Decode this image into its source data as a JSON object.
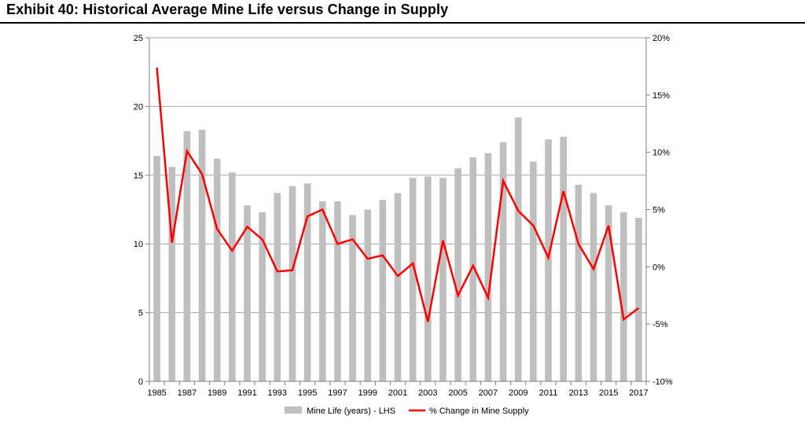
{
  "header": {
    "title": "Exhibit 40: Historical Average Mine Life versus Change in Supply"
  },
  "colors": {
    "bars": "#bfbfbf",
    "line": "#ff0000",
    "grid": "#a6a6a6"
  },
  "chart_data": {
    "type": "bar",
    "title": "",
    "xlabel": "",
    "ylabel": "",
    "categories": [
      "1985",
      "1986",
      "1987",
      "1988",
      "1989",
      "1990",
      "1991",
      "1992",
      "1993",
      "1994",
      "1995",
      "1996",
      "1997",
      "1998",
      "1999",
      "2000",
      "2001",
      "2002",
      "2003",
      "2004",
      "2005",
      "2006",
      "2007",
      "2008",
      "2009",
      "2010",
      "2011",
      "2012",
      "2013",
      "2014",
      "2015",
      "2016",
      "2017"
    ],
    "x_tick_labels": [
      "1985",
      "1987",
      "1989",
      "1991",
      "1993",
      "1995",
      "1997",
      "1999",
      "2001",
      "2003",
      "2005",
      "2007",
      "2009",
      "2011",
      "2013",
      "2015",
      "2017"
    ],
    "ylim": [
      0,
      25
    ],
    "y_ticks": [
      "0",
      "5",
      "10",
      "15",
      "20",
      "25"
    ],
    "y2lim": [
      -10,
      20
    ],
    "y2_ticks": [
      "-10%",
      "-5%",
      "0%",
      "5%",
      "10%",
      "15%",
      "20%"
    ],
    "grid": true,
    "legend_position": "bottom",
    "series": [
      {
        "name": "Mine Life (years) - LHS",
        "type": "bar",
        "axis": "left",
        "values": [
          16.4,
          15.6,
          18.2,
          18.3,
          16.2,
          15.2,
          12.8,
          12.3,
          13.7,
          14.2,
          14.4,
          13.1,
          13.1,
          12.1,
          12.5,
          13.2,
          13.7,
          14.8,
          14.9,
          14.8,
          15.5,
          16.3,
          16.6,
          17.4,
          19.2,
          16.0,
          17.6,
          17.8,
          14.3,
          13.7,
          12.8,
          12.3,
          11.9
        ]
      },
      {
        "name": "% Change in Mine Supply",
        "type": "line",
        "axis": "right",
        "values": [
          17.4,
          2.1,
          10.1,
          8.1,
          3.3,
          1.4,
          3.5,
          2.4,
          -0.4,
          -0.3,
          4.4,
          5.0,
          2.0,
          2.4,
          0.7,
          1.0,
          -0.8,
          0.3,
          -4.8,
          2.3,
          -2.5,
          0.1,
          -2.7,
          7.5,
          4.9,
          3.6,
          0.8,
          6.6,
          2.0,
          -0.2,
          3.6,
          -4.6,
          -3.6
        ]
      }
    ]
  }
}
